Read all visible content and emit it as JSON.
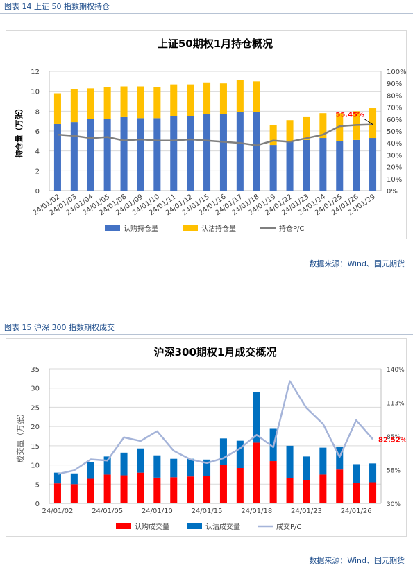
{
  "captions": {
    "fig14": "图表 14  上证 50 指数期权持仓",
    "fig15": "图表 15  沪深 300 指数期权成交"
  },
  "sources": {
    "fig14": "数据来源：Wind、国元期货",
    "fig15": "数据来源：Wind、国元期货"
  },
  "colors": {
    "caption": "#1f4e8c",
    "call_blue": "#4472c4",
    "put_yellow": "#ffc000",
    "pc_line_gray": "#7f7f7f",
    "call_red": "#ff0000",
    "put_blue": "#0070c0",
    "pc_line_lightblue": "#a5b4d9",
    "label_red": "#ff0000"
  },
  "chart_data": [
    {
      "type": "bar",
      "stacked": true,
      "title": "上证50期权1月持仓概况",
      "ylabel": "持仓量（万张）",
      "ylim": [
        0,
        12
      ],
      "yticks": [
        "0",
        "2",
        "4",
        "6",
        "8",
        "10",
        "12"
      ],
      "y2lim": [
        0,
        100
      ],
      "y2ticks": [
        "0%",
        "10%",
        "20%",
        "30%",
        "40%",
        "50%",
        "60%",
        "70%",
        "80%",
        "90%",
        "100%"
      ],
      "categories": [
        "24/01/02",
        "24/01/03",
        "24/01/04",
        "24/01/05",
        "24/01/08",
        "24/01/09",
        "24/01/10",
        "24/01/11",
        "24/01/12",
        "24/01/15",
        "24/01/16",
        "24/01/17",
        "24/01/18",
        "24/01/19",
        "24/01/22",
        "24/01/23",
        "24/01/24",
        "24/01/25",
        "24/01/26",
        "24/01/29"
      ],
      "series": [
        {
          "name": "认购持仓量",
          "kind": "bar",
          "values": [
            6.7,
            6.9,
            7.2,
            7.2,
            7.4,
            7.3,
            7.3,
            7.5,
            7.5,
            7.7,
            7.7,
            7.9,
            7.9,
            4.6,
            5.0,
            5.1,
            5.3,
            5.0,
            5.1,
            5.3
          ]
        },
        {
          "name": "认沽持仓量",
          "kind": "bar",
          "values": [
            3.1,
            3.3,
            3.1,
            3.2,
            3.1,
            3.2,
            3.1,
            3.2,
            3.2,
            3.2,
            3.1,
            3.2,
            3.1,
            2.0,
            2.1,
            2.3,
            2.5,
            2.8,
            2.9,
            3.0
          ]
        },
        {
          "name": "持仓P/C",
          "kind": "line",
          "axis": "right",
          "values": [
            47,
            46,
            44,
            45,
            42,
            43,
            42,
            42,
            43,
            42,
            41,
            40,
            38,
            42,
            41,
            44,
            47,
            54,
            55,
            55.45
          ]
        }
      ],
      "annotation": {
        "text": "55.45%",
        "series": "持仓P/C",
        "category": "24/01/29"
      },
      "legend": "bottom",
      "grid": true
    },
    {
      "type": "bar",
      "stacked": true,
      "title": "沪深300期权1月成交概况",
      "ylabel": "成交量（万张）",
      "ylim": [
        0,
        35
      ],
      "yticks": [
        "0",
        "5",
        "10",
        "15",
        "20",
        "25",
        "30",
        "35"
      ],
      "y2lim": [
        30,
        140
      ],
      "y2ticks": [
        "30%",
        "58%",
        "85%",
        "113%",
        "140%"
      ],
      "categories": [
        "24/01/02",
        "24/01/03",
        "24/01/04",
        "24/01/05",
        "24/01/08",
        "24/01/09",
        "24/01/10",
        "24/01/11",
        "24/01/12",
        "24/01/15",
        "24/01/16",
        "24/01/17",
        "24/01/18",
        "24/01/19",
        "24/01/22",
        "24/01/23",
        "24/01/24",
        "24/01/25",
        "24/01/26",
        "24/01/29"
      ],
      "xticks_shown": [
        "24/01/02",
        "24/01/05",
        "24/01/10",
        "24/01/15",
        "24/01/18",
        "24/01/23",
        "24/01/26"
      ],
      "series": [
        {
          "name": "认购成交量",
          "kind": "bar",
          "values": [
            5.2,
            5.0,
            6.4,
            7.5,
            7.3,
            8.0,
            6.7,
            6.8,
            7.0,
            7.2,
            10.0,
            9.2,
            15.8,
            11.0,
            6.6,
            6.0,
            7.5,
            8.8,
            5.3,
            5.5
          ]
        },
        {
          "name": "认沽成交量",
          "kind": "bar",
          "values": [
            2.8,
            2.8,
            4.3,
            4.7,
            5.9,
            6.3,
            5.8,
            4.8,
            4.6,
            4.2,
            6.9,
            7.1,
            13.2,
            8.4,
            8.4,
            6.2,
            7.0,
            6.0,
            4.9,
            4.9
          ]
        },
        {
          "name": "成交P/C",
          "kind": "line",
          "axis": "right",
          "values": [
            54,
            57,
            66,
            65,
            84,
            81,
            89,
            73,
            66,
            63,
            67,
            75,
            86,
            76,
            130,
            108,
            95,
            68,
            98,
            82.52
          ]
        }
      ],
      "annotation": {
        "text": "82.52%",
        "series": "成交P/C",
        "category": "24/01/29"
      },
      "legend": "bottom",
      "grid": true
    }
  ]
}
